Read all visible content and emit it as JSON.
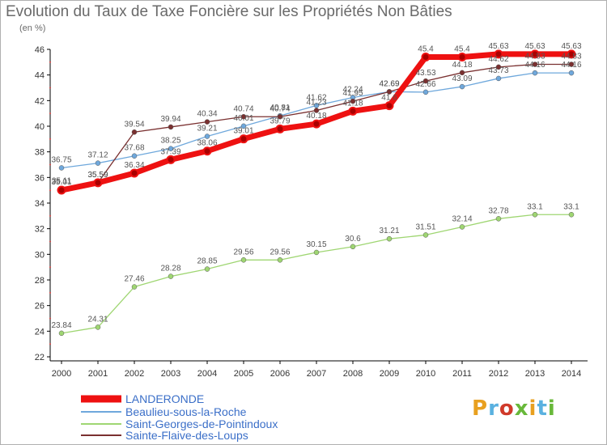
{
  "title": "Evolution du Taux de Taxe Foncière sur les Propriétés Non Bâties",
  "unit": "(en %)",
  "logo": {
    "text": "Proxiti",
    "colors": [
      "#e8a020",
      "#5ab1e0",
      "#d03a2a",
      "#68b83a",
      "#e8a020",
      "#5ab1e0",
      "#68b83a"
    ]
  },
  "chart_data": {
    "type": "line",
    "x": [
      2000,
      2001,
      2002,
      2003,
      2004,
      2005,
      2006,
      2007,
      2008,
      2009,
      2010,
      2011,
      2012,
      2013,
      2014
    ],
    "x_tick_labels": [
      "2000",
      "2001",
      "2002",
      "2003",
      "2004",
      "2005",
      "2006",
      "2007",
      "2008",
      "2009",
      "2010",
      "2011",
      "2012",
      "2013",
      "2014"
    ],
    "ylim": [
      22,
      46
    ],
    "y_ticks": [
      22,
      24,
      26,
      28,
      30,
      32,
      34,
      36,
      38,
      40,
      42,
      44,
      46
    ],
    "y_tick_labels": [
      "22",
      "24",
      "26",
      "28",
      "30",
      "32",
      "34",
      "36",
      "38",
      "40",
      "42",
      "44",
      "46"
    ],
    "grid": false,
    "legend": "bottom-left",
    "series": [
      {
        "name": "LANDERONDE",
        "color": "#ee1111",
        "values": [
          35.01,
          35.59,
          36.34,
          37.39,
          38.06,
          39.01,
          39.79,
          40.18,
          41.18,
          41.6,
          45.4,
          45.4,
          45.63,
          45.63,
          45.63
        ],
        "labels": [
          "35.01",
          "35.59",
          "36.34",
          "37.39",
          "38.06",
          "39.01",
          "39.79",
          "40.18",
          "41.18",
          "41.6",
          "45.4",
          "45.4",
          "45.63",
          "45.63",
          "45.63"
        ]
      },
      {
        "name": "Beaulieu-sous-la-Roche",
        "color": "#6fa8dc",
        "values": [
          36.75,
          37.12,
          37.68,
          38.25,
          39.21,
          40.01,
          40.81,
          41.62,
          42.24,
          42.69,
          42.66,
          43.09,
          43.73,
          44.16,
          44.16
        ],
        "labels": [
          "36.75",
          "37.12",
          "37.68",
          "38.25",
          "39.21",
          "40.01",
          "40.81",
          "41.62",
          "42.24",
          "42.69",
          "42.66",
          "43.09",
          "43.73",
          "44.16",
          "44.16"
        ]
      },
      {
        "name": "Saint-Georges-de-Pointindoux",
        "color": "#9fd672",
        "values": [
          23.84,
          24.31,
          27.46,
          28.28,
          28.85,
          29.56,
          29.56,
          30.15,
          30.6,
          31.21,
          31.51,
          32.14,
          32.78,
          33.1,
          33.1
        ],
        "labels": [
          "23.84",
          "24.31",
          "27.46",
          "28.28",
          "28.85",
          "29.56",
          "29.56",
          "30.15",
          "30.6",
          "31.21",
          "31.51",
          "32.14",
          "32.78",
          "33.1",
          "33.1"
        ]
      },
      {
        "name": "Sainte-Flaive-des-Loups",
        "color": "#7a3030",
        "values": [
          35.11,
          35.59,
          39.54,
          39.94,
          40.34,
          40.74,
          40.74,
          41.23,
          41.95,
          42.69,
          43.53,
          44.18,
          44.62,
          44.83,
          44.83
        ],
        "labels": [
          "35.11",
          "35.59",
          "39.54",
          "39.94",
          "40.34",
          "40.74",
          "40.74",
          "41.23",
          "41.95",
          "42.69",
          "43.53",
          "44.18",
          "44.62",
          "44.83",
          "44.83"
        ]
      }
    ]
  }
}
